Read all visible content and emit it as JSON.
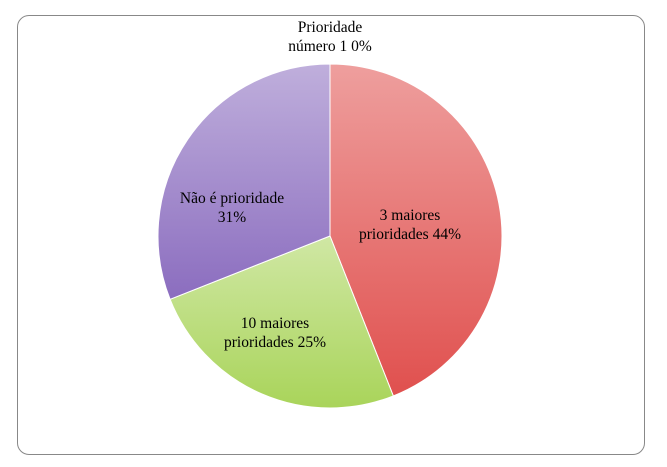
{
  "chart_data": {
    "type": "pie",
    "categories": [
      "Prioridade número 1",
      "3 maiores prioridades",
      "10 maiores prioridades",
      "Não é prioridade"
    ],
    "values": [
      0,
      44,
      25,
      31
    ],
    "value_labels": [
      "0%",
      "44%",
      "25%",
      "31%"
    ],
    "colors": [
      "#4f81bd",
      "#e0504e",
      "#a9d45a",
      "#8b6dbf"
    ]
  }
}
